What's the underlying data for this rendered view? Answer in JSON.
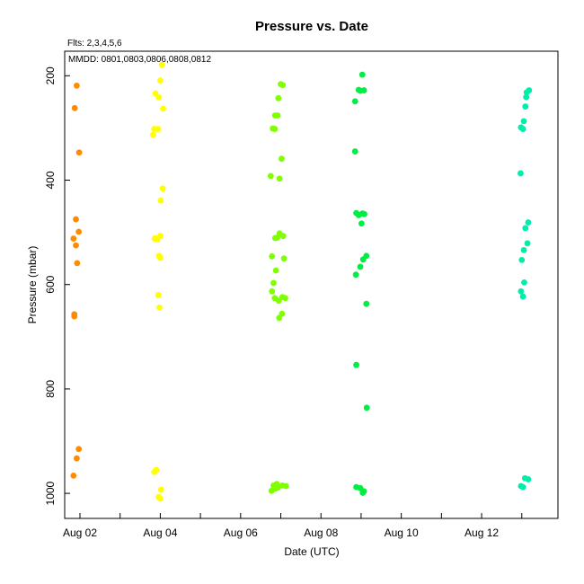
{
  "chart_data": {
    "type": "scatter",
    "title": "Pressure  vs. Date",
    "flts_note": "Flts: 2,3,4,5,6",
    "mmdd_note": "MMDD: 0801,0803,0806,0808,0812",
    "xlabel": "Date (UTC)",
    "ylabel": "Pressure (mbar)",
    "xlim": [
      1.62,
      13.9
    ],
    "ylim": [
      1048,
      153
    ],
    "y_reversed": true,
    "grid": false,
    "x_ticks": [
      {
        "value": 2,
        "label": "Aug 02"
      },
      {
        "value": 3,
        "label": ""
      },
      {
        "value": 4,
        "label": "Aug 04"
      },
      {
        "value": 5,
        "label": ""
      },
      {
        "value": 6,
        "label": "Aug 06"
      },
      {
        "value": 7,
        "label": ""
      },
      {
        "value": 8,
        "label": "Aug 08"
      },
      {
        "value": 9,
        "label": ""
      },
      {
        "value": 10,
        "label": "Aug 10"
      },
      {
        "value": 11,
        "label": ""
      },
      {
        "value": 12,
        "label": "Aug 12"
      },
      {
        "value": 13,
        "label": ""
      }
    ],
    "y_ticks": [
      {
        "value": 200,
        "label": "200"
      },
      {
        "value": 400,
        "label": "400"
      },
      {
        "value": 600,
        "label": "600"
      },
      {
        "value": 800,
        "label": "800"
      },
      {
        "value": 1000,
        "label": "1000"
      }
    ],
    "series": [
      {
        "color": "#ff8c00",
        "points": [
          [
            1.92,
            219
          ],
          [
            1.87,
            262
          ],
          [
            1.98,
            347
          ],
          [
            1.9,
            475
          ],
          [
            1.97,
            499
          ],
          [
            1.84,
            512
          ],
          [
            1.9,
            525
          ],
          [
            1.93,
            559
          ],
          [
            1.86,
            657
          ],
          [
            1.86,
            661
          ],
          [
            1.97,
            915
          ],
          [
            1.92,
            933
          ],
          [
            1.84,
            966
          ]
        ]
      },
      {
        "color": "#ffff00",
        "points": [
          [
            4.04,
            179
          ],
          [
            4.0,
            209
          ],
          [
            3.88,
            234
          ],
          [
            3.96,
            241
          ],
          [
            4.07,
            263
          ],
          [
            3.85,
            302
          ],
          [
            3.94,
            302
          ],
          [
            3.82,
            313
          ],
          [
            4.06,
            416
          ],
          [
            4.01,
            439
          ],
          [
            3.87,
            511
          ],
          [
            3.93,
            513
          ],
          [
            4.0,
            507
          ],
          [
            3.86,
            512
          ],
          [
            3.97,
            545
          ],
          [
            4.0,
            549
          ],
          [
            3.95,
            620
          ],
          [
            3.98,
            644
          ],
          [
            3.9,
            955
          ],
          [
            3.85,
            959
          ],
          [
            4.02,
            993
          ],
          [
            3.96,
            1007
          ],
          [
            4.0,
            1010
          ]
        ]
      },
      {
        "color": "#7fff00",
        "points": [
          [
            7.0,
            216
          ],
          [
            7.05,
            218
          ],
          [
            6.94,
            243
          ],
          [
            6.86,
            276
          ],
          [
            6.92,
            276
          ],
          [
            6.8,
            301
          ],
          [
            6.85,
            302
          ],
          [
            7.02,
            359
          ],
          [
            6.75,
            392
          ],
          [
            6.97,
            397
          ],
          [
            6.97,
            502
          ],
          [
            7.06,
            507
          ],
          [
            6.86,
            511
          ],
          [
            6.91,
            510
          ],
          [
            6.78,
            546
          ],
          [
            7.08,
            550
          ],
          [
            6.88,
            573
          ],
          [
            6.82,
            597
          ],
          [
            6.78,
            613
          ],
          [
            6.85,
            626
          ],
          [
            7.04,
            624
          ],
          [
            7.11,
            626
          ],
          [
            6.95,
            631
          ],
          [
            7.03,
            656
          ],
          [
            6.96,
            664
          ],
          [
            6.9,
            982
          ],
          [
            6.82,
            985
          ],
          [
            7.04,
            985
          ],
          [
            7.13,
            986
          ],
          [
            6.93,
            989
          ],
          [
            6.86,
            991
          ],
          [
            6.77,
            995
          ]
        ]
      },
      {
        "color": "#00ee44",
        "points": [
          [
            9.03,
            198
          ],
          [
            8.94,
            227
          ],
          [
            8.98,
            229
          ],
          [
            9.07,
            228
          ],
          [
            8.85,
            249
          ],
          [
            8.85,
            345
          ],
          [
            8.88,
            463
          ],
          [
            9.03,
            464
          ],
          [
            9.08,
            465
          ],
          [
            8.94,
            467
          ],
          [
            9.01,
            483
          ],
          [
            9.13,
            545
          ],
          [
            9.05,
            552
          ],
          [
            8.98,
            566
          ],
          [
            8.87,
            581
          ],
          [
            9.13,
            637
          ],
          [
            8.88,
            754
          ],
          [
            9.14,
            836
          ],
          [
            8.88,
            988
          ],
          [
            8.98,
            990
          ],
          [
            9.07,
            996
          ],
          [
            9.04,
            999
          ]
        ]
      },
      {
        "color": "#00eeaa",
        "points": [
          [
            13.18,
            228
          ],
          [
            13.12,
            232
          ],
          [
            13.11,
            241
          ],
          [
            13.09,
            259
          ],
          [
            13.05,
            287
          ],
          [
            12.98,
            299
          ],
          [
            13.03,
            302
          ],
          [
            12.97,
            387
          ],
          [
            13.16,
            481
          ],
          [
            13.09,
            492
          ],
          [
            13.14,
            521
          ],
          [
            13.05,
            534
          ],
          [
            13.0,
            553
          ],
          [
            13.06,
            596
          ],
          [
            12.98,
            613
          ],
          [
            13.03,
            623
          ],
          [
            13.08,
            971
          ],
          [
            13.16,
            973
          ],
          [
            12.98,
            986
          ],
          [
            13.03,
            988
          ]
        ]
      }
    ]
  }
}
